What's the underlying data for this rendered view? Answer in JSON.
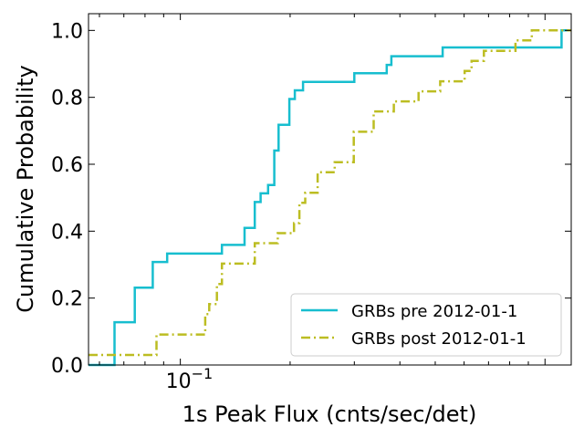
{
  "chart_data": {
    "type": "line",
    "subtype": "cumulative-step",
    "xscale": "log",
    "xlabel": "1s Peak Flux (cnts/sec/det)",
    "ylabel": "Cumulative Probability",
    "xlim": [
      0.056,
      1.18
    ],
    "ylim": [
      0.0,
      1.05
    ],
    "x_ticks": [
      {
        "value": 0.1,
        "base": "10",
        "exponent": "−1"
      }
    ],
    "y_ticks": [
      "0.0",
      "0.2",
      "0.4",
      "0.6",
      "0.8",
      "1.0"
    ],
    "y_tick_values": [
      0.0,
      0.2,
      0.4,
      0.6,
      0.8,
      1.0
    ],
    "grid": false,
    "legend_position": "lower-right",
    "series": [
      {
        "name": "GRBs pre 2012-01-1",
        "color": "#17becf",
        "linestyle": "solid",
        "x": [
          0.056,
          0.066,
          0.075,
          0.084,
          0.092,
          0.125,
          0.13,
          0.15,
          0.16,
          0.166,
          0.174,
          0.181,
          0.186,
          0.199,
          0.206,
          0.217,
          0.237,
          0.3,
          0.368,
          0.379,
          0.524,
          1.11,
          1.13,
          1.18
        ],
        "y": [
          0.0,
          0.128,
          0.231,
          0.308,
          0.333,
          0.333,
          0.359,
          0.41,
          0.487,
          0.513,
          0.538,
          0.641,
          0.718,
          0.795,
          0.821,
          0.846,
          0.846,
          0.872,
          0.897,
          0.923,
          0.949,
          1.0,
          1.0,
          1.0
        ]
      },
      {
        "name": "GRBs post 2012-01-1",
        "color": "#bcbd22",
        "linestyle": "dashdot",
        "x": [
          0.056,
          0.075,
          0.086,
          0.117,
          0.12,
          0.126,
          0.13,
          0.16,
          0.185,
          0.205,
          0.212,
          0.22,
          0.238,
          0.265,
          0.299,
          0.339,
          0.385,
          0.45,
          0.516,
          0.602,
          0.629,
          0.68,
          0.83,
          0.92,
          1.06,
          1.18
        ],
        "y": [
          0.03,
          0.03,
          0.091,
          0.152,
          0.182,
          0.242,
          0.303,
          0.364,
          0.394,
          0.424,
          0.485,
          0.515,
          0.576,
          0.606,
          0.697,
          0.758,
          0.788,
          0.818,
          0.848,
          0.879,
          0.909,
          0.939,
          0.97,
          1.0,
          1.0,
          1.0
        ]
      }
    ]
  }
}
